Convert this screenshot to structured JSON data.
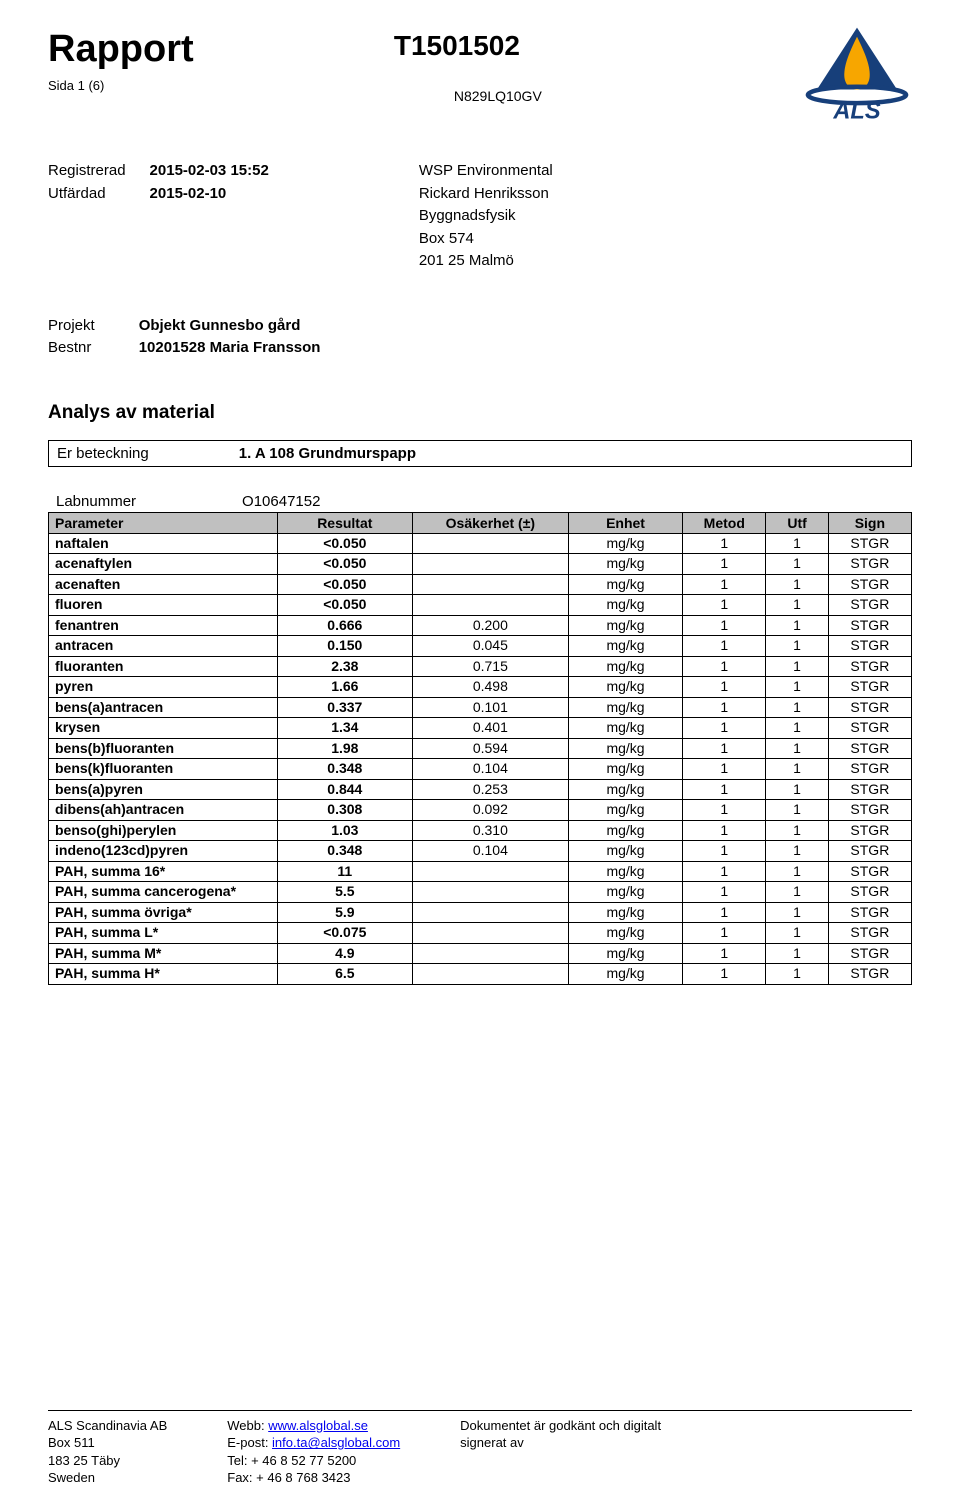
{
  "header": {
    "rapport": "Rapport",
    "page_indicator": "Sida 1 (6)",
    "report_id": "T1501502",
    "doc_id": "N829LQ10GV"
  },
  "logo": {
    "name": "ALS",
    "flame_fill": "#f7a600",
    "triangle_fill": "#173f7a",
    "base_fill": "#173f7a",
    "text_fill": "#173f7a"
  },
  "meta": {
    "labels": {
      "registered": "Registrerad",
      "issued": "Utfärdad"
    },
    "registered_value": "2015-02-03 15:52",
    "issued_value": "2015-02-10",
    "recipient": {
      "line1": "WSP Environmental",
      "line2": "Rickard Henriksson",
      "line3": "Byggnadsfysik",
      "line4": "Box 574",
      "line5": "201 25 Malmö"
    }
  },
  "project": {
    "labels": {
      "project": "Projekt",
      "bestnr": "Bestnr"
    },
    "project_value": "Objekt Gunnesbo gård",
    "bestnr_value": "10201528 Maria Fransson"
  },
  "analysis_title": "Analys av material",
  "designation": {
    "label": "Er beteckning",
    "value": "1. A 108 Grundmurspapp"
  },
  "labnum": {
    "label": "Labnummer",
    "value": "O10647152"
  },
  "table": {
    "columns": {
      "parameter": "Parameter",
      "result": "Resultat",
      "uncertainty": "Osäkerhet (±)",
      "unit": "Enhet",
      "method": "Metod",
      "utf": "Utf",
      "sign": "Sign"
    },
    "rows": [
      {
        "param": "naftalen",
        "res": "<0.050",
        "unc": "",
        "unit": "mg/kg",
        "met": "1",
        "utf": "1",
        "sign": "STGR"
      },
      {
        "param": "acenaftylen",
        "res": "<0.050",
        "unc": "",
        "unit": "mg/kg",
        "met": "1",
        "utf": "1",
        "sign": "STGR"
      },
      {
        "param": "acenaften",
        "res": "<0.050",
        "unc": "",
        "unit": "mg/kg",
        "met": "1",
        "utf": "1",
        "sign": "STGR"
      },
      {
        "param": "fluoren",
        "res": "<0.050",
        "unc": "",
        "unit": "mg/kg",
        "met": "1",
        "utf": "1",
        "sign": "STGR"
      },
      {
        "param": "fenantren",
        "res": "0.666",
        "unc": "0.200",
        "unit": "mg/kg",
        "met": "1",
        "utf": "1",
        "sign": "STGR"
      },
      {
        "param": "antracen",
        "res": "0.150",
        "unc": "0.045",
        "unit": "mg/kg",
        "met": "1",
        "utf": "1",
        "sign": "STGR"
      },
      {
        "param": "fluoranten",
        "res": "2.38",
        "unc": "0.715",
        "unit": "mg/kg",
        "met": "1",
        "utf": "1",
        "sign": "STGR"
      },
      {
        "param": "pyren",
        "res": "1.66",
        "unc": "0.498",
        "unit": "mg/kg",
        "met": "1",
        "utf": "1",
        "sign": "STGR"
      },
      {
        "param": "bens(a)antracen",
        "res": "0.337",
        "unc": "0.101",
        "unit": "mg/kg",
        "met": "1",
        "utf": "1",
        "sign": "STGR"
      },
      {
        "param": "krysen",
        "res": "1.34",
        "unc": "0.401",
        "unit": "mg/kg",
        "met": "1",
        "utf": "1",
        "sign": "STGR"
      },
      {
        "param": "bens(b)fluoranten",
        "res": "1.98",
        "unc": "0.594",
        "unit": "mg/kg",
        "met": "1",
        "utf": "1",
        "sign": "STGR"
      },
      {
        "param": "bens(k)fluoranten",
        "res": "0.348",
        "unc": "0.104",
        "unit": "mg/kg",
        "met": "1",
        "utf": "1",
        "sign": "STGR"
      },
      {
        "param": "bens(a)pyren",
        "res": "0.844",
        "unc": "0.253",
        "unit": "mg/kg",
        "met": "1",
        "utf": "1",
        "sign": "STGR"
      },
      {
        "param": "dibens(ah)antracen",
        "res": "0.308",
        "unc": "0.092",
        "unit": "mg/kg",
        "met": "1",
        "utf": "1",
        "sign": "STGR"
      },
      {
        "param": "benso(ghi)perylen",
        "res": "1.03",
        "unc": "0.310",
        "unit": "mg/kg",
        "met": "1",
        "utf": "1",
        "sign": "STGR"
      },
      {
        "param": "indeno(123cd)pyren",
        "res": "0.348",
        "unc": "0.104",
        "unit": "mg/kg",
        "met": "1",
        "utf": "1",
        "sign": "STGR"
      },
      {
        "param": "PAH, summa 16*",
        "res": "11",
        "unc": "",
        "unit": "mg/kg",
        "met": "1",
        "utf": "1",
        "sign": "STGR"
      },
      {
        "param": "PAH, summa cancerogena*",
        "res": "5.5",
        "unc": "",
        "unit": "mg/kg",
        "met": "1",
        "utf": "1",
        "sign": "STGR"
      },
      {
        "param": "PAH, summa övriga*",
        "res": "5.9",
        "unc": "",
        "unit": "mg/kg",
        "met": "1",
        "utf": "1",
        "sign": "STGR"
      },
      {
        "param": "PAH, summa L*",
        "res": "<0.075",
        "unc": "",
        "unit": "mg/kg",
        "met": "1",
        "utf": "1",
        "sign": "STGR"
      },
      {
        "param": "PAH, summa M*",
        "res": "4.9",
        "unc": "",
        "unit": "mg/kg",
        "met": "1",
        "utf": "1",
        "sign": "STGR"
      },
      {
        "param": "PAH, summa H*",
        "res": "6.5",
        "unc": "",
        "unit": "mg/kg",
        "met": "1",
        "utf": "1",
        "sign": "STGR"
      }
    ]
  },
  "footer": {
    "col1": {
      "l1": "ALS Scandinavia AB",
      "l2": "Box 511",
      "l3": "183 25 Täby",
      "l4": "Sweden"
    },
    "col2": {
      "l1_label": "Webb: ",
      "l1_link": "www.alsglobal.se",
      "l2_label": "E-post: ",
      "l2_link": "info.ta@alsglobal.com",
      "l3": "Tel: + 46 8 52 77 5200",
      "l4": "Fax: + 46 8 768 3423"
    },
    "col3": {
      "l1": "Dokumentet är godkänt och digitalt",
      "l2": "signerat av"
    }
  }
}
